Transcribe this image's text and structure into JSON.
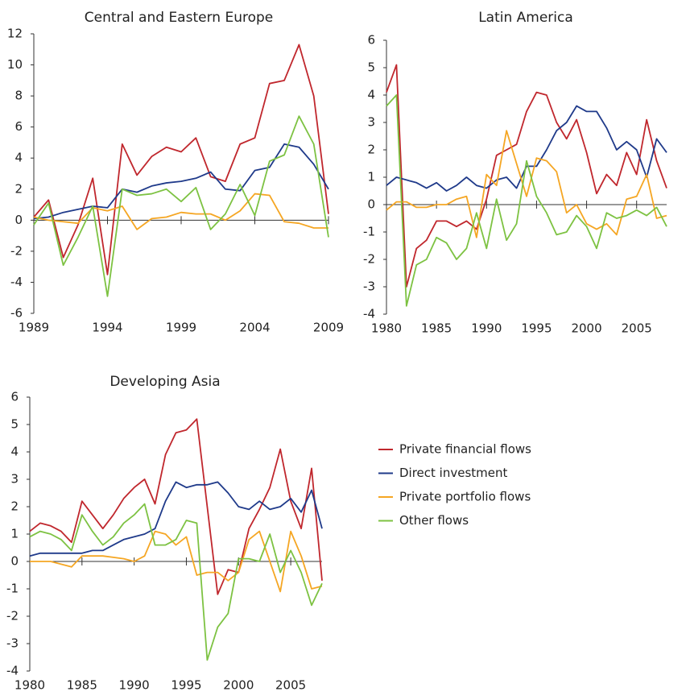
{
  "legend": [
    {
      "name": "Private financial flows",
      "color": "#c0272d"
    },
    {
      "name": "Direct investment",
      "color": "#1f3a8a"
    },
    {
      "name": "Private portfolio flows",
      "color": "#f5a623"
    },
    {
      "name": "Other flows",
      "color": "#7dc242"
    }
  ],
  "chart_data": [
    {
      "type": "line",
      "title": "Central and Eastern Europe",
      "x": [
        1989,
        1990,
        1991,
        1992,
        1993,
        1994,
        1995,
        1996,
        1997,
        1998,
        1999,
        2000,
        2001,
        2002,
        2003,
        2004,
        2005,
        2006,
        2007,
        2008,
        2009
      ],
      "xlim": [
        1989,
        2009
      ],
      "xticks": [
        1989,
        1994,
        1999,
        2004,
        2009
      ],
      "ylim": [
        -6,
        12
      ],
      "yticks": [
        -6,
        -4,
        -2,
        0,
        2,
        4,
        6,
        8,
        10,
        12
      ],
      "series": [
        {
          "values": [
            0.2,
            1.3,
            -2.4,
            -0.3,
            2.7,
            -3.5,
            4.9,
            2.9,
            4.1,
            4.7,
            4.4,
            5.3,
            2.8,
            2.5,
            4.9,
            5.3,
            8.8,
            9.0,
            11.3,
            8.0,
            0.4
          ]
        },
        {
          "values": [
            0.1,
            0.2,
            0.5,
            0.7,
            0.9,
            0.8,
            2.0,
            1.8,
            2.2,
            2.4,
            2.5,
            2.7,
            3.1,
            2.0,
            1.9,
            3.2,
            3.4,
            4.9,
            4.7,
            3.6,
            2.0
          ]
        },
        {
          "values": [
            0.2,
            0.0,
            -0.1,
            -0.2,
            0.8,
            0.6,
            0.9,
            -0.6,
            0.1,
            0.2,
            0.5,
            0.4,
            0.4,
            0.0,
            0.6,
            1.7,
            1.6,
            -0.1,
            -0.2,
            -0.5,
            -0.5
          ]
        },
        {
          "values": [
            -0.3,
            1.1,
            -2.9,
            -1.1,
            0.9,
            -4.9,
            2.0,
            1.6,
            1.7,
            2.0,
            1.2,
            2.1,
            -0.6,
            0.4,
            2.3,
            0.3,
            3.8,
            4.2,
            6.7,
            4.9,
            -1.1
          ]
        }
      ]
    },
    {
      "type": "line",
      "title": "Latin America",
      "x": [
        1980,
        1981,
        1982,
        1983,
        1984,
        1985,
        1986,
        1987,
        1988,
        1989,
        1990,
        1991,
        1992,
        1993,
        1994,
        1995,
        1996,
        1997,
        1998,
        1999,
        2000,
        2001,
        2002,
        2003,
        2004,
        2005,
        2006,
        2007,
        2008
      ],
      "xlim": [
        1980,
        2008
      ],
      "xticks": [
        1980,
        1985,
        1990,
        1995,
        2000,
        2005
      ],
      "ylim": [
        -4,
        6
      ],
      "yticks": [
        -4,
        -3,
        -2,
        -1,
        0,
        1,
        2,
        3,
        4,
        5,
        6
      ],
      "series": [
        {
          "values": [
            4.1,
            5.1,
            -3.0,
            -1.6,
            -1.3,
            -0.6,
            -0.6,
            -0.8,
            -0.6,
            -0.9,
            0.2,
            1.8,
            2.0,
            2.2,
            3.4,
            4.1,
            4.0,
            3.0,
            2.4,
            3.1,
            1.9,
            0.4,
            1.1,
            0.7,
            1.9,
            1.1,
            3.1,
            1.6,
            0.6
          ]
        },
        {
          "values": [
            0.7,
            1.0,
            0.9,
            0.8,
            0.6,
            0.8,
            0.5,
            0.7,
            1.0,
            0.7,
            0.6,
            0.9,
            1.0,
            0.6,
            1.4,
            1.4,
            2.0,
            2.7,
            3.0,
            3.6,
            3.4,
            3.4,
            2.8,
            2.0,
            2.3,
            2.0,
            1.0,
            2.4,
            1.9
          ]
        },
        {
          "values": [
            -0.2,
            0.1,
            0.1,
            -0.1,
            -0.1,
            0.0,
            0.0,
            0.2,
            0.3,
            -1.2,
            1.1,
            0.7,
            2.7,
            1.5,
            0.3,
            1.7,
            1.6,
            1.2,
            -0.3,
            0.0,
            -0.7,
            -0.9,
            -0.7,
            -1.1,
            0.2,
            0.3,
            1.1,
            -0.5,
            -0.4
          ]
        },
        {
          "values": [
            3.6,
            4.0,
            -3.7,
            -2.2,
            -2.0,
            -1.2,
            -1.4,
            -2.0,
            -1.6,
            -0.3,
            -1.6,
            0.2,
            -1.3,
            -0.7,
            1.6,
            0.3,
            -0.3,
            -1.1,
            -1.0,
            -0.4,
            -0.8,
            -1.6,
            -0.3,
            -0.5,
            -0.4,
            -0.2,
            -0.4,
            -0.1,
            -0.8
          ]
        }
      ]
    },
    {
      "type": "line",
      "title": "Developing Asia",
      "x": [
        1980,
        1981,
        1982,
        1983,
        1984,
        1985,
        1986,
        1987,
        1988,
        1989,
        1990,
        1991,
        1992,
        1993,
        1994,
        1995,
        1996,
        1997,
        1998,
        1999,
        2000,
        2001,
        2002,
        2003,
        2004,
        2005,
        2006,
        2007,
        2008
      ],
      "xlim": [
        1980,
        2008
      ],
      "xticks": [
        1980,
        1985,
        1990,
        1995,
        2000,
        2005
      ],
      "ylim": [
        -4,
        6
      ],
      "yticks": [
        -4,
        -3,
        -2,
        -1,
        0,
        1,
        2,
        3,
        4,
        5,
        6
      ],
      "series": [
        {
          "values": [
            1.1,
            1.4,
            1.3,
            1.1,
            0.7,
            2.2,
            1.7,
            1.2,
            1.7,
            2.3,
            2.7,
            3.0,
            2.1,
            3.9,
            4.7,
            4.8,
            5.2,
            2.0,
            -1.2,
            -0.3,
            -0.4,
            1.2,
            1.9,
            2.7,
            4.1,
            2.2,
            1.2,
            3.4,
            -0.7
          ]
        },
        {
          "values": [
            0.2,
            0.3,
            0.3,
            0.3,
            0.3,
            0.3,
            0.4,
            0.4,
            0.6,
            0.8,
            0.9,
            1.0,
            1.2,
            2.2,
            2.9,
            2.7,
            2.8,
            2.8,
            2.9,
            2.5,
            2.0,
            1.9,
            2.2,
            1.9,
            2.0,
            2.3,
            1.8,
            2.6,
            1.2
          ]
        },
        {
          "values": [
            0.0,
            0.0,
            0.0,
            -0.1,
            -0.2,
            0.2,
            0.2,
            0.2,
            0.15,
            0.1,
            0.0,
            0.2,
            1.1,
            1.0,
            0.6,
            0.9,
            -0.5,
            -0.4,
            -0.4,
            -0.7,
            -0.4,
            0.8,
            1.1,
            0.0,
            -1.1,
            1.1,
            0.2,
            -1.0,
            -0.9
          ]
        },
        {
          "values": [
            0.9,
            1.1,
            1.0,
            0.8,
            0.4,
            1.7,
            1.1,
            0.6,
            0.9,
            1.4,
            1.7,
            2.1,
            0.6,
            0.6,
            0.8,
            1.5,
            1.4,
            -3.6,
            -2.4,
            -1.9,
            0.1,
            0.1,
            0.0,
            1.0,
            -0.4,
            0.4,
            -0.4,
            -1.6,
            -0.8
          ]
        }
      ]
    }
  ]
}
